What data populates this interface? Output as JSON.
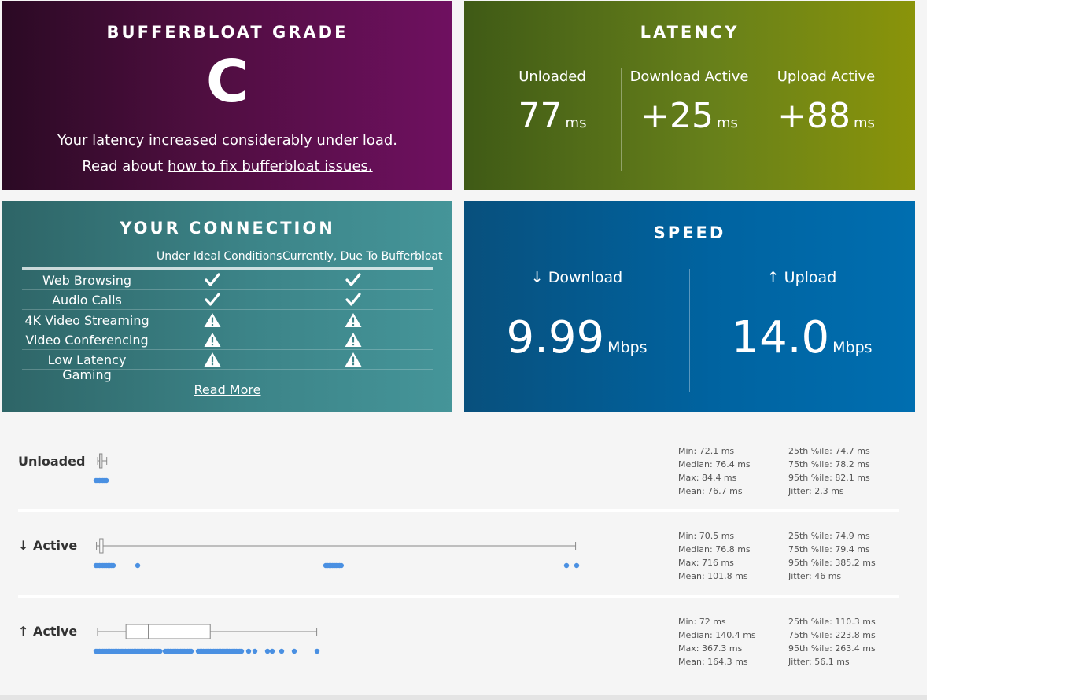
{
  "grade": {
    "title": "BUFFERBLOAT GRADE",
    "letter": "C",
    "description": "Your latency increased considerably under load.",
    "read_prefix": "Read about ",
    "link_text": "how to fix bufferbloat issues."
  },
  "latency": {
    "title": "LATENCY",
    "unit": "ms",
    "columns": [
      {
        "label": "Unloaded",
        "value": "77"
      },
      {
        "label": "Download Active",
        "value": "+25"
      },
      {
        "label": "Upload Active",
        "value": "+88"
      }
    ]
  },
  "connection": {
    "title": "YOUR CONNECTION",
    "col_ideal": "Under Ideal Conditions",
    "col_current": "Currently, Due To Bufferbloat",
    "rows": [
      {
        "name": "Web Browsing",
        "ideal": "check",
        "current": "check"
      },
      {
        "name": "Audio Calls",
        "ideal": "check",
        "current": "check"
      },
      {
        "name": "4K Video Streaming",
        "ideal": "warning",
        "current": "warning"
      },
      {
        "name": "Video Conferencing",
        "ideal": "warning",
        "current": "warning"
      },
      {
        "name": "Low Latency Gaming",
        "ideal": "warning",
        "current": "warning"
      }
    ],
    "read_more": "Read More"
  },
  "speed": {
    "title": "SPEED",
    "unit": "Mbps",
    "download": {
      "label": "↓ Download",
      "value": "9.99"
    },
    "upload": {
      "label": "↑ Upload",
      "value": "14.0"
    }
  },
  "details": {
    "accent_color": "#4a90e2",
    "rows": [
      {
        "label": "Unloaded",
        "min": 72.1,
        "q1": 74.7,
        "median": 76.4,
        "q3": 78.2,
        "max": 84.4,
        "stats_left": [
          "Min: 72.1 ms",
          "Median: 76.4 ms",
          "Max: 84.4 ms",
          "Mean: 76.7 ms"
        ],
        "stats_right": [
          "25th %ile: 74.7 ms",
          "75th %ile: 78.2 ms",
          "95th %ile: 82.1 ms",
          "Jitter: 2.3 ms"
        ]
      },
      {
        "label": "↓ Active",
        "min": 70.5,
        "q1": 74.9,
        "median": 76.8,
        "q3": 79.4,
        "max": 716,
        "stats_left": [
          "Min: 70.5 ms",
          "Median: 76.8 ms",
          "Max: 716 ms",
          "Mean: 101.8 ms"
        ],
        "stats_right": [
          "25th %ile: 74.9 ms",
          "75th %ile: 79.4 ms",
          "95th %ile: 385.2 ms",
          "Jitter: 46 ms"
        ]
      },
      {
        "label": "↑ Active",
        "min": 72,
        "q1": 110.3,
        "median": 140.4,
        "q3": 223.8,
        "max": 367.3,
        "stats_left": [
          "Min: 72 ms",
          "Median: 140.4 ms",
          "Max: 367.3 ms",
          "Mean: 164.3 ms"
        ],
        "stats_right": [
          "25th %ile: 110.3 ms",
          "75th %ile: 223.8 ms",
          "95th %ile: 263.4 ms",
          "Jitter: 56.1 ms"
        ]
      }
    ]
  }
}
